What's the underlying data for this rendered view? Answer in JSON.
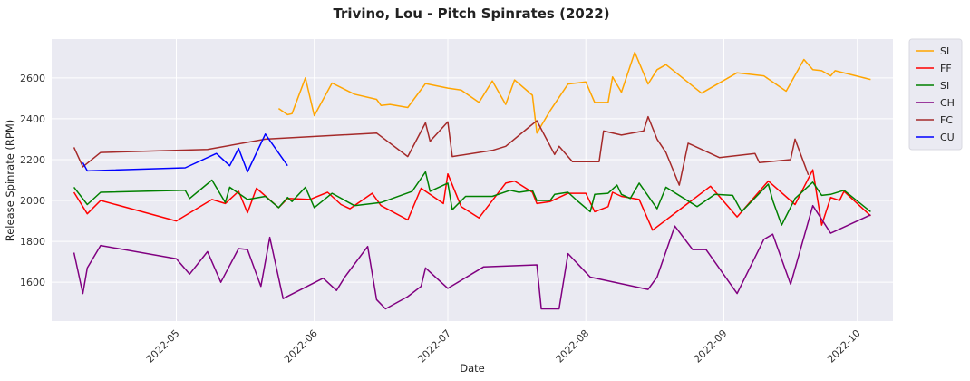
{
  "chart_data": {
    "type": "line",
    "title": "Trivino, Lou - Pitch Spinrates (2022)",
    "xlabel": "Date",
    "ylabel": "Release Spinrate (RPM)",
    "xlim": [
      "2022-04-03",
      "2022-10-09"
    ],
    "ylim": [
      1410,
      2790
    ],
    "yticks": [
      1600,
      1800,
      2000,
      2200,
      2400,
      2600
    ],
    "xticks": [
      "2022-05",
      "2022-06",
      "2022-07",
      "2022-08",
      "2022-09",
      "2022-10"
    ],
    "grid": true,
    "legend_position": "outside-right",
    "series": [
      {
        "name": "SL",
        "color": "#FFA500",
        "points": [
          [
            "2022-05-24",
            2450
          ],
          [
            "2022-05-26",
            2420
          ],
          [
            "2022-05-27",
            2425
          ],
          [
            "2022-05-30",
            2600
          ],
          [
            "2022-06-01",
            2415
          ],
          [
            "2022-06-05",
            2575
          ],
          [
            "2022-06-10",
            2520
          ],
          [
            "2022-06-15",
            2495
          ],
          [
            "2022-06-16",
            2465
          ],
          [
            "2022-06-18",
            2470
          ],
          [
            "2022-06-22",
            2455
          ],
          [
            "2022-06-26",
            2572
          ],
          [
            "2022-07-01",
            2550
          ],
          [
            "2022-07-04",
            2540
          ],
          [
            "2022-07-08",
            2480
          ],
          [
            "2022-07-11",
            2585
          ],
          [
            "2022-07-14",
            2470
          ],
          [
            "2022-07-16",
            2590
          ],
          [
            "2022-07-20",
            2515
          ],
          [
            "2022-07-21",
            2330
          ],
          [
            "2022-07-24",
            2440
          ],
          [
            "2022-07-28",
            2570
          ],
          [
            "2022-08-01",
            2580
          ],
          [
            "2022-08-03",
            2480
          ],
          [
            "2022-08-06",
            2480
          ],
          [
            "2022-08-07",
            2605
          ],
          [
            "2022-08-09",
            2530
          ],
          [
            "2022-08-12",
            2725
          ],
          [
            "2022-08-15",
            2570
          ],
          [
            "2022-08-17",
            2640
          ],
          [
            "2022-08-19",
            2665
          ],
          [
            "2022-08-27",
            2525
          ],
          [
            "2022-09-04",
            2625
          ],
          [
            "2022-09-10",
            2610
          ],
          [
            "2022-09-15",
            2535
          ],
          [
            "2022-09-19",
            2690
          ],
          [
            "2022-09-21",
            2640
          ],
          [
            "2022-09-23",
            2635
          ],
          [
            "2022-09-25",
            2610
          ],
          [
            "2022-09-26",
            2635
          ],
          [
            "2022-10-04",
            2592
          ]
        ]
      },
      {
        "name": "FF",
        "color": "#FF0000",
        "points": [
          [
            "2022-04-08",
            2040
          ],
          [
            "2022-04-11",
            1935
          ],
          [
            "2022-04-14",
            2000
          ],
          [
            "2022-05-01",
            1900
          ],
          [
            "2022-05-09",
            2005
          ],
          [
            "2022-05-12",
            1985
          ],
          [
            "2022-05-15",
            2045
          ],
          [
            "2022-05-17",
            1940
          ],
          [
            "2022-05-19",
            2060
          ],
          [
            "2022-05-24",
            1965
          ],
          [
            "2022-05-26",
            2010
          ],
          [
            "2022-05-31",
            2005
          ],
          [
            "2022-06-04",
            2040
          ],
          [
            "2022-06-07",
            1980
          ],
          [
            "2022-06-09",
            1960
          ],
          [
            "2022-06-14",
            2035
          ],
          [
            "2022-06-16",
            1975
          ],
          [
            "2022-06-22",
            1905
          ],
          [
            "2022-06-25",
            2060
          ],
          [
            "2022-06-30",
            1985
          ],
          [
            "2022-07-01",
            2130
          ],
          [
            "2022-07-04",
            1970
          ],
          [
            "2022-07-08",
            1915
          ],
          [
            "2022-07-14",
            2085
          ],
          [
            "2022-07-16",
            2095
          ],
          [
            "2022-07-20",
            2040
          ],
          [
            "2022-07-21",
            1985
          ],
          [
            "2022-07-24",
            1995
          ],
          [
            "2022-07-28",
            2035
          ],
          [
            "2022-08-01",
            2035
          ],
          [
            "2022-08-03",
            1945
          ],
          [
            "2022-08-06",
            1970
          ],
          [
            "2022-08-07",
            2040
          ],
          [
            "2022-08-09",
            2020
          ],
          [
            "2022-08-13",
            2005
          ],
          [
            "2022-08-16",
            1855
          ],
          [
            "2022-08-29",
            2070
          ],
          [
            "2022-09-04",
            1920
          ],
          [
            "2022-09-11",
            2095
          ],
          [
            "2022-09-17",
            1980
          ],
          [
            "2022-09-21",
            2150
          ],
          [
            "2022-09-23",
            1880
          ],
          [
            "2022-09-25",
            2015
          ],
          [
            "2022-09-27",
            2000
          ],
          [
            "2022-09-28",
            2045
          ],
          [
            "2022-10-04",
            1925
          ]
        ]
      },
      {
        "name": "SI",
        "color": "#008000",
        "points": [
          [
            "2022-04-08",
            2065
          ],
          [
            "2022-04-11",
            1980
          ],
          [
            "2022-04-14",
            2040
          ],
          [
            "2022-05-03",
            2050
          ],
          [
            "2022-05-04",
            2010
          ],
          [
            "2022-05-09",
            2100
          ],
          [
            "2022-05-12",
            1990
          ],
          [
            "2022-05-13",
            2065
          ],
          [
            "2022-05-15",
            2035
          ],
          [
            "2022-05-17",
            2005
          ],
          [
            "2022-05-21",
            2020
          ],
          [
            "2022-05-24",
            1965
          ],
          [
            "2022-05-26",
            2015
          ],
          [
            "2022-05-27",
            1995
          ],
          [
            "2022-05-30",
            2065
          ],
          [
            "2022-06-01",
            1965
          ],
          [
            "2022-06-05",
            2035
          ],
          [
            "2022-06-10",
            1975
          ],
          [
            "2022-06-16",
            1990
          ],
          [
            "2022-06-23",
            2045
          ],
          [
            "2022-06-26",
            2140
          ],
          [
            "2022-06-27",
            2045
          ],
          [
            "2022-07-01",
            2085
          ],
          [
            "2022-07-02",
            1955
          ],
          [
            "2022-07-05",
            2020
          ],
          [
            "2022-07-11",
            2020
          ],
          [
            "2022-07-15",
            2050
          ],
          [
            "2022-07-17",
            2040
          ],
          [
            "2022-07-20",
            2050
          ],
          [
            "2022-07-21",
            2000
          ],
          [
            "2022-07-24",
            2000
          ],
          [
            "2022-07-25",
            2030
          ],
          [
            "2022-07-28",
            2040
          ],
          [
            "2022-07-30",
            2000
          ],
          [
            "2022-08-02",
            1945
          ],
          [
            "2022-08-03",
            2030
          ],
          [
            "2022-08-06",
            2035
          ],
          [
            "2022-08-08",
            2075
          ],
          [
            "2022-08-09",
            2030
          ],
          [
            "2022-08-11",
            2010
          ],
          [
            "2022-08-13",
            2085
          ],
          [
            "2022-08-17",
            1960
          ],
          [
            "2022-08-19",
            2065
          ],
          [
            "2022-08-26",
            1970
          ],
          [
            "2022-08-30",
            2030
          ],
          [
            "2022-09-03",
            2025
          ],
          [
            "2022-09-05",
            1945
          ],
          [
            "2022-09-11",
            2080
          ],
          [
            "2022-09-12",
            2000
          ],
          [
            "2022-09-14",
            1880
          ],
          [
            "2022-09-17",
            2010
          ],
          [
            "2022-09-21",
            2090
          ],
          [
            "2022-09-23",
            2025
          ],
          [
            "2022-09-25",
            2030
          ],
          [
            "2022-09-28",
            2050
          ],
          [
            "2022-10-04",
            1945
          ]
        ]
      },
      {
        "name": "CH",
        "color": "#800080",
        "points": [
          [
            "2022-04-08",
            1745
          ],
          [
            "2022-04-10",
            1545
          ],
          [
            "2022-04-11",
            1670
          ],
          [
            "2022-04-14",
            1780
          ],
          [
            "2022-05-01",
            1715
          ],
          [
            "2022-05-04",
            1640
          ],
          [
            "2022-05-08",
            1750
          ],
          [
            "2022-05-11",
            1600
          ],
          [
            "2022-05-15",
            1765
          ],
          [
            "2022-05-17",
            1760
          ],
          [
            "2022-05-20",
            1580
          ],
          [
            "2022-05-22",
            1820
          ],
          [
            "2022-05-25",
            1520
          ],
          [
            "2022-06-03",
            1620
          ],
          [
            "2022-06-06",
            1560
          ],
          [
            "2022-06-08",
            1630
          ],
          [
            "2022-06-13",
            1775
          ],
          [
            "2022-06-15",
            1515
          ],
          [
            "2022-06-17",
            1470
          ],
          [
            "2022-06-22",
            1530
          ],
          [
            "2022-06-25",
            1580
          ],
          [
            "2022-06-26",
            1670
          ],
          [
            "2022-07-01",
            1570
          ],
          [
            "2022-07-09",
            1675
          ],
          [
            "2022-07-21",
            1685
          ],
          [
            "2022-07-22",
            1470
          ],
          [
            "2022-07-26",
            1470
          ],
          [
            "2022-07-28",
            1740
          ],
          [
            "2022-08-02",
            1625
          ],
          [
            "2022-08-15",
            1565
          ],
          [
            "2022-08-17",
            1625
          ],
          [
            "2022-08-21",
            1875
          ],
          [
            "2022-08-25",
            1760
          ],
          [
            "2022-08-28",
            1760
          ],
          [
            "2022-09-04",
            1545
          ],
          [
            "2022-09-10",
            1810
          ],
          [
            "2022-09-12",
            1835
          ],
          [
            "2022-09-16",
            1590
          ],
          [
            "2022-09-21",
            1975
          ],
          [
            "2022-09-25",
            1840
          ],
          [
            "2022-10-04",
            1930
          ]
        ]
      },
      {
        "name": "FC",
        "color": "#A52A2A",
        "points": [
          [
            "2022-04-08",
            2260
          ],
          [
            "2022-04-10",
            2165
          ],
          [
            "2022-04-14",
            2235
          ],
          [
            "2022-05-08",
            2250
          ],
          [
            "2022-05-21",
            2300
          ],
          [
            "2022-06-15",
            2330
          ],
          [
            "2022-06-22",
            2215
          ],
          [
            "2022-06-26",
            2380
          ],
          [
            "2022-06-27",
            2290
          ],
          [
            "2022-07-01",
            2385
          ],
          [
            "2022-07-02",
            2215
          ],
          [
            "2022-07-11",
            2245
          ],
          [
            "2022-07-14",
            2265
          ],
          [
            "2022-07-19",
            2355
          ],
          [
            "2022-07-21",
            2390
          ],
          [
            "2022-07-25",
            2225
          ],
          [
            "2022-07-26",
            2265
          ],
          [
            "2022-07-29",
            2190
          ],
          [
            "2022-08-04",
            2190
          ],
          [
            "2022-08-05",
            2340
          ],
          [
            "2022-08-09",
            2320
          ],
          [
            "2022-08-14",
            2340
          ],
          [
            "2022-08-15",
            2410
          ],
          [
            "2022-08-17",
            2300
          ],
          [
            "2022-08-19",
            2235
          ],
          [
            "2022-08-22",
            2075
          ],
          [
            "2022-08-24",
            2280
          ],
          [
            "2022-08-31",
            2210
          ],
          [
            "2022-09-08",
            2230
          ],
          [
            "2022-09-09",
            2185
          ],
          [
            "2022-09-16",
            2200
          ],
          [
            "2022-09-17",
            2300
          ],
          [
            "2022-09-20",
            2125
          ]
        ]
      },
      {
        "name": "CU",
        "color": "#0000FF",
        "points": [
          [
            "2022-04-10",
            2185
          ],
          [
            "2022-04-11",
            2145
          ],
          [
            "2022-05-03",
            2160
          ],
          [
            "2022-05-10",
            2230
          ],
          [
            "2022-05-13",
            2170
          ],
          [
            "2022-05-15",
            2255
          ],
          [
            "2022-05-17",
            2140
          ],
          [
            "2022-05-21",
            2325
          ],
          [
            "2022-05-26",
            2170
          ]
        ]
      }
    ]
  }
}
